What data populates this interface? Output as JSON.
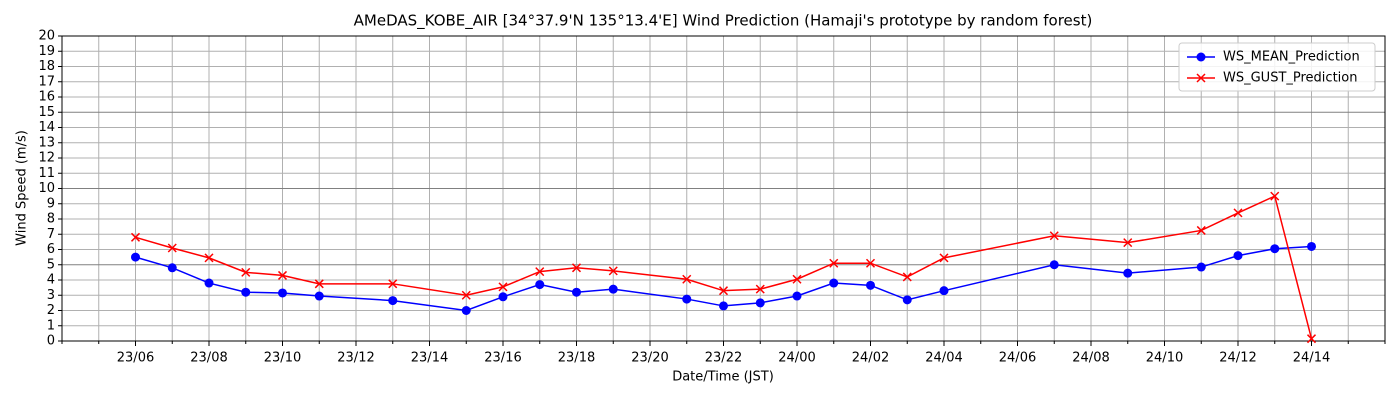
{
  "chart_data": {
    "type": "line",
    "title": "AMeDAS_KOBE_AIR [34°37.9'N 135°13.4'E] Wind Prediction (Hamaji's prototype by random forest)",
    "xlabel": "Date/Time (JST)",
    "ylabel": "Wind Speed (m/s)",
    "x": [
      "23/06",
      "23/07",
      "23/08",
      "23/09",
      "23/10",
      "23/11",
      "23/13",
      "23/15",
      "23/16",
      "23/17",
      "23/18",
      "23/19",
      "23/21",
      "23/22",
      "23/23",
      "24/00",
      "24/01",
      "24/02",
      "24/03",
      "24/04",
      "24/07",
      "24/09",
      "24/11",
      "24/12",
      "24/13",
      "24/14"
    ],
    "series": [
      {
        "name": "WS_MEAN_Prediction",
        "color": "#0000ff",
        "marker": "circle",
        "values": [
          5.5,
          4.8,
          3.8,
          3.2,
          3.15,
          2.95,
          2.65,
          2.0,
          2.9,
          3.7,
          3.2,
          3.4,
          2.75,
          2.3,
          2.5,
          2.95,
          3.8,
          3.65,
          2.7,
          3.3,
          5.0,
          4.45,
          4.85,
          5.6,
          6.05,
          6.2
        ]
      },
      {
        "name": "WS_GUST_Prediction",
        "color": "#ff0000",
        "marker": "x",
        "values": [
          6.8,
          6.1,
          5.45,
          4.5,
          4.3,
          3.75,
          3.75,
          3.0,
          3.55,
          4.55,
          4.8,
          4.6,
          4.05,
          3.3,
          3.4,
          4.05,
          5.1,
          5.1,
          4.2,
          5.45,
          6.9,
          6.45,
          7.25,
          8.4,
          9.5,
          0.15
        ]
      }
    ],
    "xlim": [
      "23/04",
      "24/16"
    ],
    "xticks": [
      "23/06",
      "23/08",
      "23/10",
      "23/12",
      "23/14",
      "23/16",
      "23/18",
      "23/20",
      "23/22",
      "24/00",
      "24/02",
      "24/04",
      "24/06",
      "24/08",
      "24/10",
      "24/12",
      "24/14"
    ],
    "ylim": [
      0,
      20
    ],
    "yticks": [
      0,
      1,
      2,
      3,
      4,
      5,
      6,
      7,
      8,
      9,
      10,
      11,
      12,
      13,
      14,
      15,
      16,
      17,
      18,
      19,
      20
    ],
    "grid": true,
    "legend": "upper right"
  }
}
